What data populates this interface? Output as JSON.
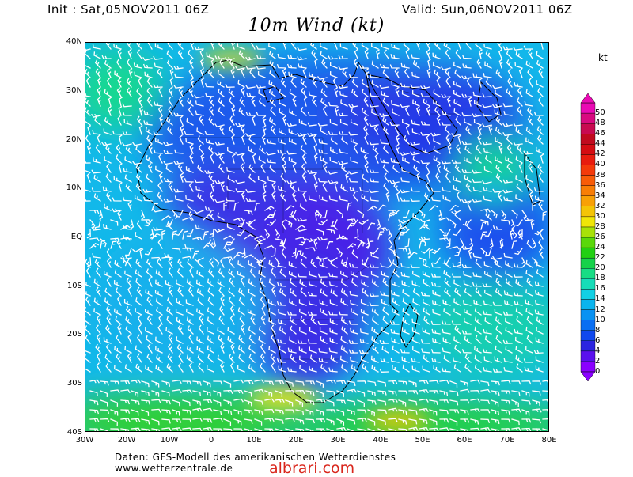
{
  "header": {
    "init": "Init : Sat,05NOV2011 06Z",
    "valid": "Valid: Sun,06NOV2011 06Z",
    "title": "10m Wind (kt)"
  },
  "map": {
    "lat_labels": [
      "40N",
      "30N",
      "20N",
      "10N",
      "EQ",
      "10S",
      "20S",
      "30S",
      "40S"
    ],
    "lon_labels": [
      "30W",
      "20W",
      "10W",
      "0",
      "10E",
      "20E",
      "30E",
      "40E",
      "50E",
      "60E",
      "70E",
      "80E"
    ],
    "region": "Africa and Indian Ocean"
  },
  "legend": {
    "unit": "kt",
    "values": [
      "0",
      "2",
      "4",
      "6",
      "8",
      "10",
      "12",
      "14",
      "16",
      "18",
      "20",
      "22",
      "24",
      "26",
      "28",
      "30",
      "32",
      "34",
      "36",
      "38",
      "40",
      "42",
      "44",
      "46",
      "48",
      "50"
    ],
    "colors": [
      "#8a00ff",
      "#5a10ee",
      "#2b24e0",
      "#1048ee",
      "#0a6ef2",
      "#0a92f2",
      "#0ab4ee",
      "#12d0e4",
      "#16dcb8",
      "#18dc84",
      "#16d24a",
      "#22d012",
      "#5ad80a",
      "#a8e208",
      "#f0e608",
      "#f4c406",
      "#f8a006",
      "#f87e06",
      "#f85c08",
      "#f43a0a",
      "#e81c0e",
      "#d40c12",
      "#c00a1e",
      "#c80a50",
      "#d80a80",
      "#ea0ab4"
    ]
  },
  "footer": {
    "credit_line1": "Daten: GFS-Modell des amerikanischen Wetterdienstes",
    "credit_line2": "www.wetterzentrale.de",
    "watermark": "albrari.com"
  }
}
